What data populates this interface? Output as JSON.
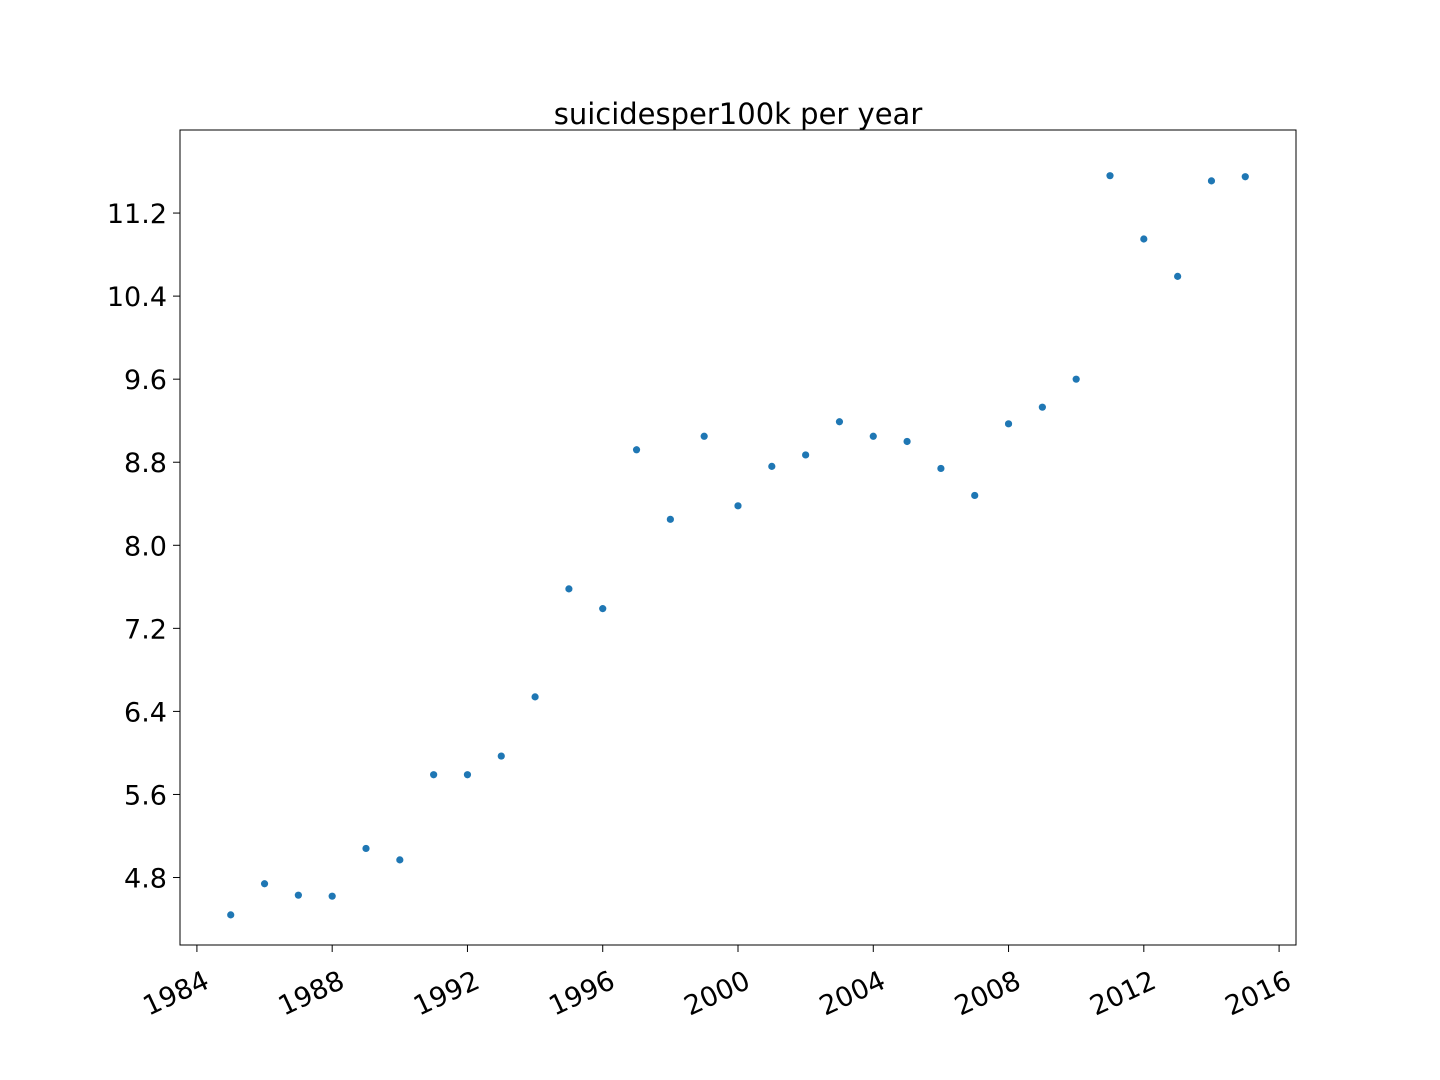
{
  "chart_data": {
    "type": "scatter",
    "title": "suicidesper100k per year",
    "xlabel": "",
    "ylabel": "",
    "xlim": [
      1983.5,
      2016.5
    ],
    "ylim": [
      4.15,
      12.0
    ],
    "xticks": [
      1984,
      1988,
      1992,
      1996,
      2000,
      2004,
      2008,
      2012,
      2016
    ],
    "xtick_labels": [
      "1984",
      "1988",
      "1992",
      "1996",
      "2000",
      "2004",
      "2008",
      "2012",
      "2016"
    ],
    "yticks": [
      4.8,
      5.6,
      6.4,
      7.2,
      8.0,
      8.8,
      9.6,
      10.4,
      11.2
    ],
    "ytick_labels": [
      "4.8",
      "5.6",
      "6.4",
      "7.2",
      "8.0",
      "8.8",
      "9.6",
      "10.4",
      "11.2"
    ],
    "grid": false,
    "series": [
      {
        "color": "#1f77b4",
        "x": [
          1985,
          1986,
          1987,
          1988,
          1989,
          1990,
          1991,
          1992,
          1993,
          1994,
          1995,
          1996,
          1997,
          1998,
          1999,
          2000,
          2001,
          2002,
          2003,
          2004,
          2005,
          2006,
          2007,
          2008,
          2009,
          2010,
          2011,
          2012,
          2013,
          2014,
          2015
        ],
        "y": [
          4.44,
          4.74,
          4.63,
          4.62,
          5.08,
          4.97,
          5.79,
          5.79,
          5.97,
          6.54,
          7.58,
          7.39,
          8.92,
          8.25,
          9.05,
          8.38,
          8.76,
          8.87,
          9.19,
          9.05,
          9.0,
          8.74,
          8.48,
          9.17,
          9.33,
          9.6,
          11.56,
          10.95,
          10.59,
          11.51,
          11.55
        ]
      }
    ]
  }
}
